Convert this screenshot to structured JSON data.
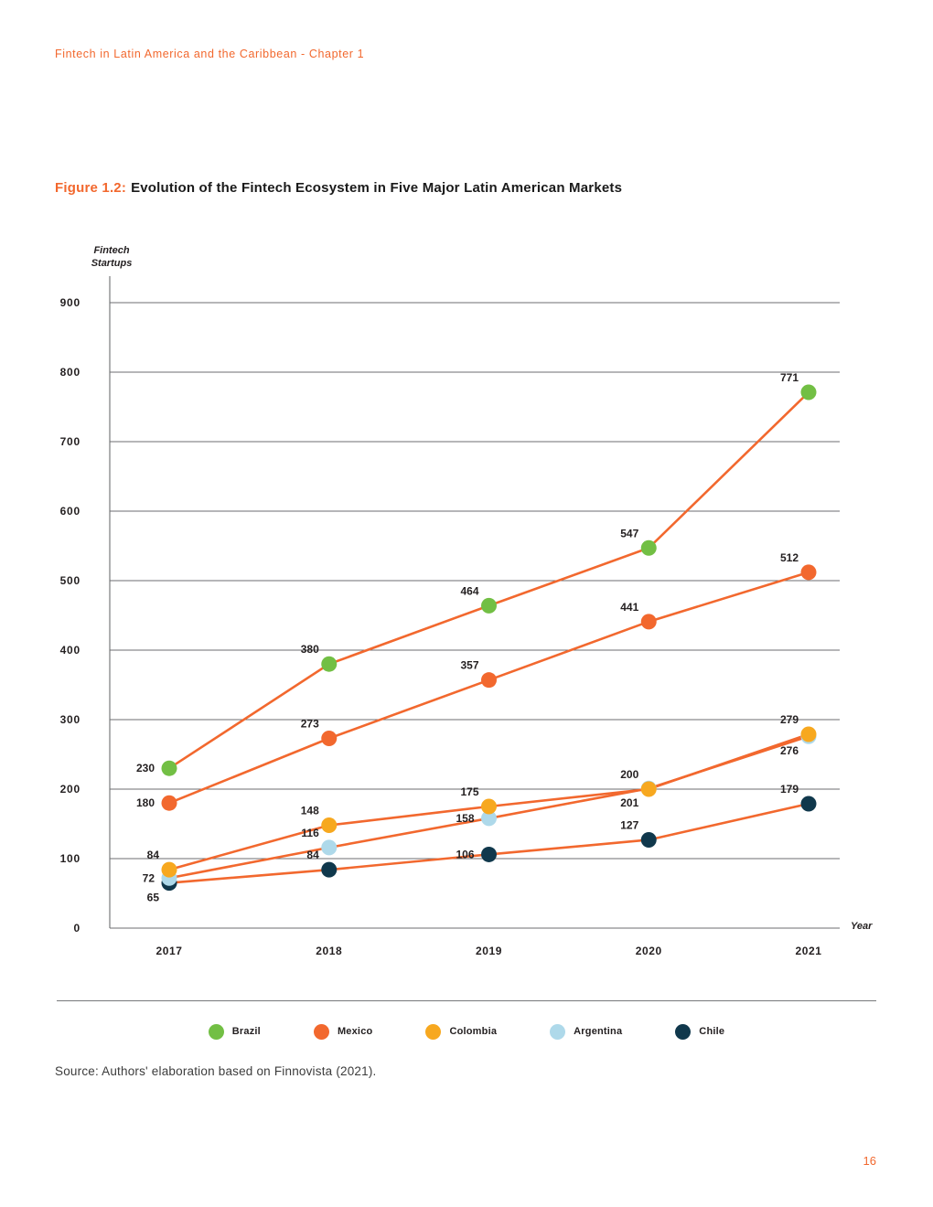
{
  "header": {
    "text": "Fintech in Latin America and the Caribbean - Chapter 1"
  },
  "figure": {
    "label": "Figure 1.2:",
    "title": "Evolution of the Fintech Ecosystem in Five Major Latin American Markets"
  },
  "source": {
    "text": "Source: Authors' elaboration based on Finnovista (2021)."
  },
  "page_number": "16",
  "colors": {
    "accent": "#f2682e",
    "text": "#231f20",
    "grid": "#6d6e71",
    "line": "#f2682e"
  },
  "chart_data": {
    "type": "line",
    "title": "Evolution of the Fintech Ecosystem in Five Major Latin American Markets",
    "xlabel": "Year",
    "ylabel": "Fintech Startups",
    "ylabel_lines": [
      "Fintech",
      "Startups"
    ],
    "x": [
      "2017",
      "2018",
      "2019",
      "2020",
      "2021"
    ],
    "ylim": [
      0,
      900
    ],
    "ytick_step": 100,
    "grid": true,
    "legend_position": "bottom",
    "line_color": "#f2682e",
    "series": [
      {
        "name": "Brazil",
        "color": "#72bf44",
        "values": [
          230,
          380,
          464,
          547,
          771
        ],
        "label_pos": [
          "l",
          "al",
          "al",
          "al",
          "al"
        ]
      },
      {
        "name": "Mexico",
        "color": "#f2682e",
        "values": [
          180,
          273,
          357,
          441,
          512
        ],
        "label_pos": [
          "l",
          "al",
          "al",
          "al",
          "al"
        ]
      },
      {
        "name": "Colombia",
        "color": "#f7a81f",
        "values": [
          84,
          148,
          175,
          200,
          279
        ],
        "label_pos": [
          "al",
          "al",
          "al",
          "al",
          "al"
        ]
      },
      {
        "name": "Argentina",
        "color": "#aed9ea",
        "values": [
          72,
          116,
          158,
          201,
          276
        ],
        "label_pos": [
          "l",
          "al",
          "l",
          "bl",
          "bl"
        ]
      },
      {
        "name": "Chile",
        "color": "#10384c",
        "values": [
          65,
          84,
          106,
          127,
          179
        ],
        "label_pos": [
          "bl",
          "al",
          "l",
          "al",
          "al"
        ]
      }
    ]
  }
}
